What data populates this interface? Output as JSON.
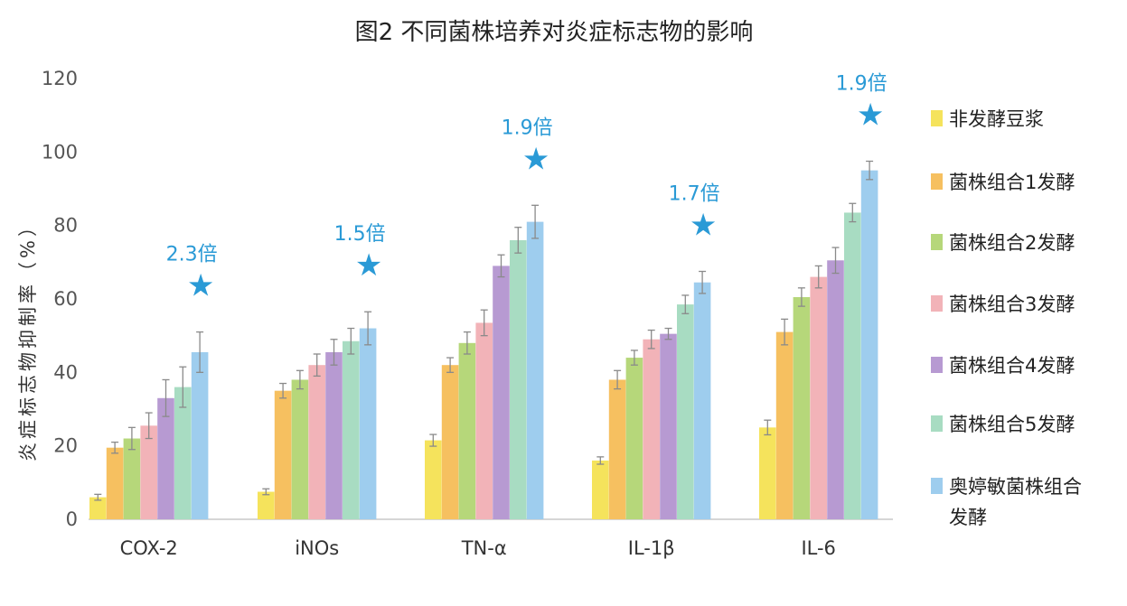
{
  "chart_data": {
    "type": "bar",
    "title": "图2 不同菌株培养对炎症标志物的影响",
    "xlabel": "",
    "ylabel": "炎症标志物抑制率（%）",
    "ylim": [
      0,
      120
    ],
    "yticks": [
      "0",
      "20",
      "40",
      "60",
      "80",
      "100",
      "120"
    ],
    "grid": false,
    "legend_position": "right",
    "categories": [
      "COX-2",
      "iNOs",
      "TN-α",
      "IL-1β",
      "IL-6"
    ],
    "series": [
      {
        "name": "非发酵豆浆",
        "color": "#f5e35c",
        "values": [
          6,
          7.5,
          21.5,
          16,
          25
        ],
        "errors": [
          0.8,
          0.8,
          1.6,
          1.0,
          2.0
        ]
      },
      {
        "name": "菌株组合1发酵",
        "color": "#f6c060",
        "values": [
          19.5,
          35,
          42,
          38,
          51
        ],
        "errors": [
          1.5,
          2.0,
          2.0,
          2.5,
          3.5
        ]
      },
      {
        "name": "菌株组合2发酵",
        "color": "#b6d77a",
        "values": [
          22,
          38,
          48,
          44,
          60.5
        ],
        "errors": [
          3.0,
          2.5,
          3.0,
          2.0,
          2.5
        ]
      },
      {
        "name": "菌株组合3发酵",
        "color": "#f2b3b8",
        "values": [
          25.5,
          42,
          53.5,
          49,
          66
        ],
        "errors": [
          3.5,
          3.0,
          3.5,
          2.5,
          3.0
        ]
      },
      {
        "name": "菌株组合4发酵",
        "color": "#b79ad2",
        "values": [
          33,
          45.5,
          69,
          50.5,
          70.5
        ],
        "errors": [
          5.0,
          3.5,
          3.0,
          1.5,
          3.5
        ]
      },
      {
        "name": "菌株组合5发酵",
        "color": "#a8dcc2",
        "values": [
          36,
          48.5,
          76,
          58.5,
          83.5
        ],
        "errors": [
          5.5,
          3.5,
          3.5,
          2.5,
          2.5
        ]
      },
      {
        "name": "奥婷敏菌株组合发酵",
        "color": "#9ecdee",
        "values": [
          45.5,
          52,
          81,
          64.5,
          95
        ],
        "errors": [
          5.5,
          4.5,
          4.5,
          3.0,
          2.5
        ]
      }
    ],
    "annotations": [
      {
        "category": "COX-2",
        "text": "2.3倍",
        "marker": "★"
      },
      {
        "category": "iNOs",
        "text": "1.5倍",
        "marker": "★"
      },
      {
        "category": "TN-α",
        "text": "1.9倍",
        "marker": "★"
      },
      {
        "category": "IL-1β",
        "text": "1.7倍",
        "marker": "★"
      },
      {
        "category": "IL-6",
        "text": "1.9倍",
        "marker": "★"
      }
    ],
    "accent_color": "#2a9ad6"
  }
}
